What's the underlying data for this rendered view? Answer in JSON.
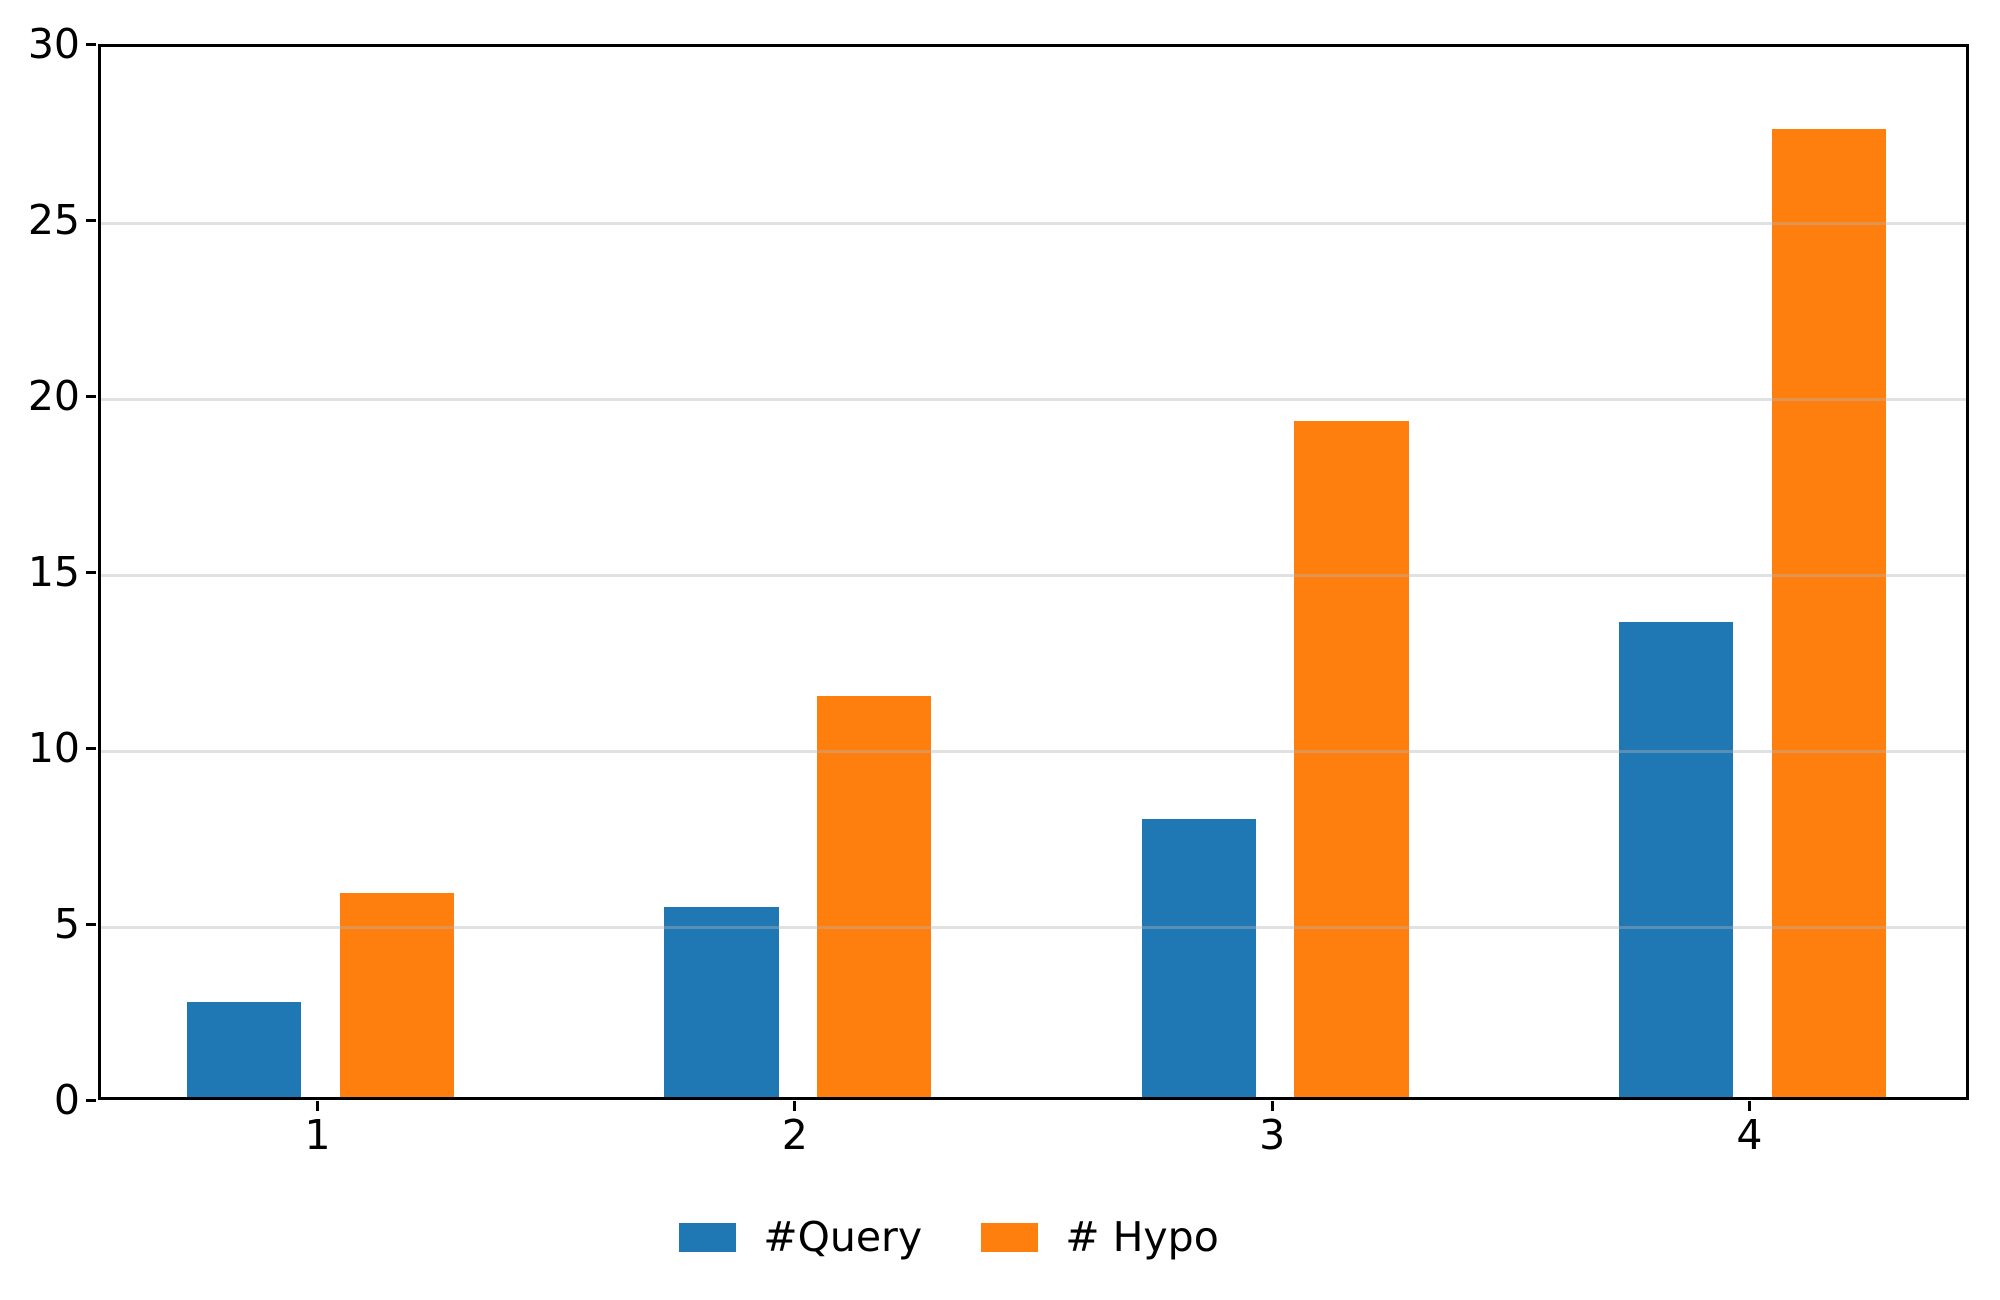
{
  "chart_data": {
    "type": "bar",
    "categories": [
      "1",
      "2",
      "3",
      "4"
    ],
    "x": [
      1,
      2,
      3,
      4
    ],
    "series": [
      {
        "name": "#Query",
        "color": "#1f77b4",
        "values": [
          2.7,
          5.4,
          7.9,
          13.5
        ]
      },
      {
        "name": "# Hypo",
        "color": "#ff7f0e",
        "values": [
          5.8,
          11.4,
          19.2,
          27.5
        ]
      }
    ],
    "title": "",
    "xlabel": "",
    "ylabel": "",
    "ylim": [
      0,
      30
    ],
    "yticks": [
      0,
      5,
      10,
      15,
      20,
      25,
      30
    ],
    "xlim": [
      0.54,
      4.46
    ],
    "bar_width": 0.24,
    "group_offset": 0.16,
    "grid": "y-only",
    "grid_on_top_of_bars": true,
    "grid_color": "rgba(180,180,180,0.4)",
    "axis_color": "#000000",
    "background": "#ffffff",
    "legend_position": "bottom-center"
  }
}
